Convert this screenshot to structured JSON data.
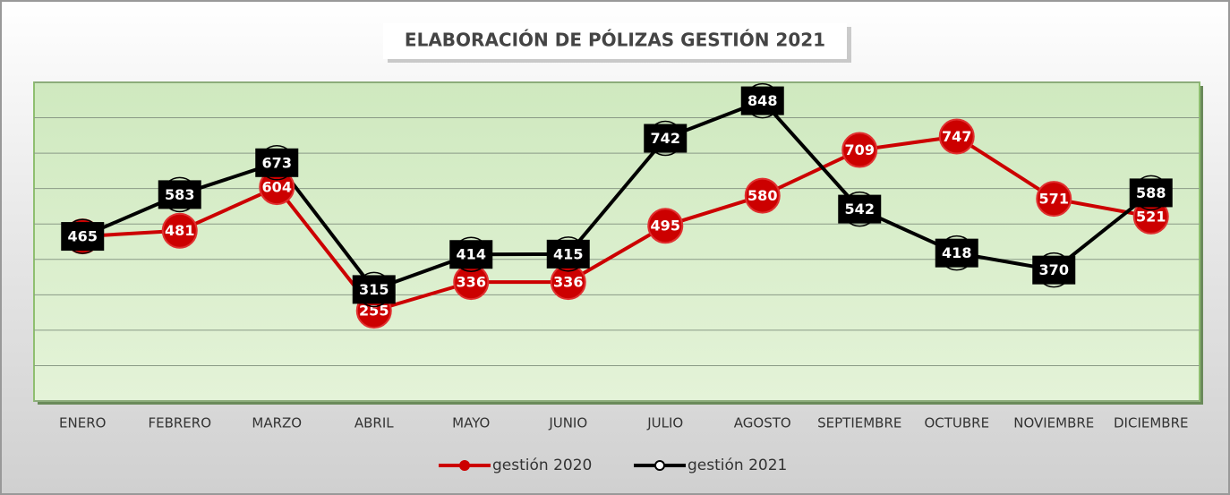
{
  "chart_data": {
    "type": "line",
    "title": "ELABORACIÓN DE PÓLIZAS GESTIÓN 2021",
    "categories": [
      "ENERO",
      "FEBRERO",
      "MARZO",
      "ABRIL",
      "MAYO",
      "JUNIO",
      "JULIO",
      "AGOSTO",
      "SEPTIEMBRE",
      "OCTUBRE",
      "NOVIEMBRE",
      "DICIEMBRE"
    ],
    "series": [
      {
        "name": "gestión 2020",
        "color": "#cc0000",
        "values": [
          465,
          481,
          604,
          255,
          336,
          336,
          495,
          580,
          709,
          747,
          571,
          521
        ]
      },
      {
        "name": "gestión 2021",
        "color": "#000000",
        "values": [
          465,
          583,
          673,
          315,
          414,
          415,
          742,
          848,
          542,
          418,
          370,
          588
        ]
      }
    ],
    "ylim": [
      0,
      900
    ],
    "yticks": [
      0,
      100,
      200,
      300,
      400,
      500,
      600,
      700,
      800,
      900
    ],
    "grid": true,
    "legend": "bottom"
  }
}
